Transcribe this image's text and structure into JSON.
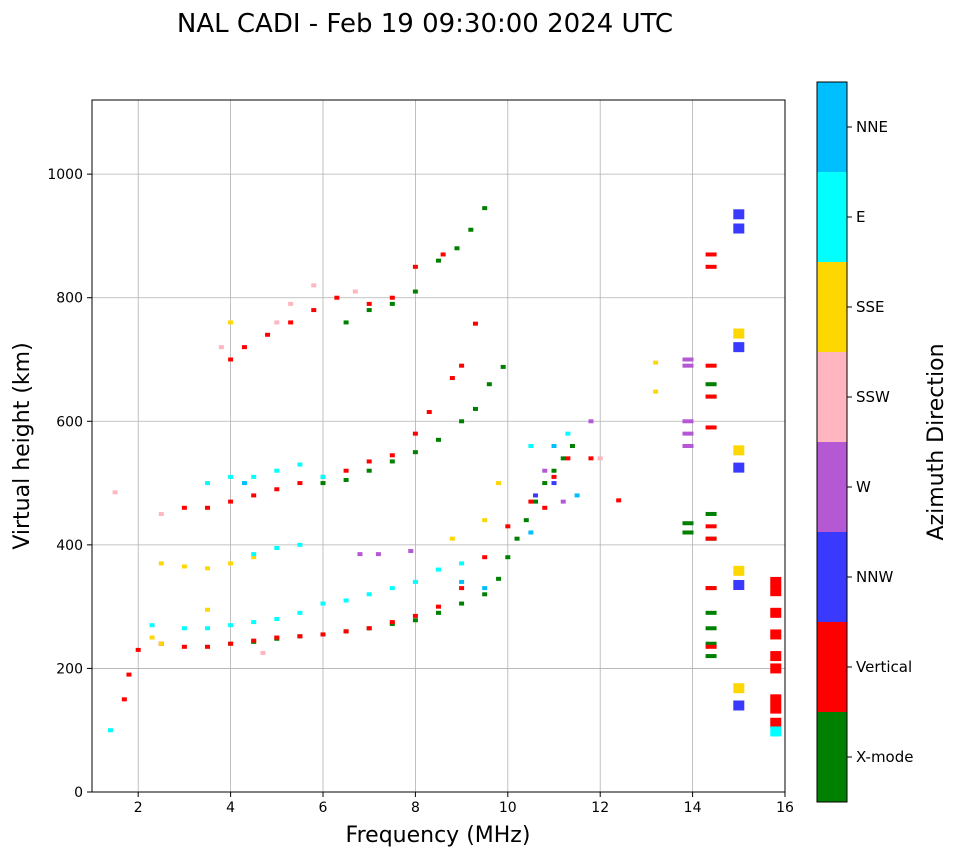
{
  "chart_data": {
    "type": "scatter",
    "title": "NAL CADI - Feb 19 09:30:00 2024 UTC",
    "xlabel": "Frequency (MHz)",
    "ylabel": "Virtual height (km)",
    "xlim": [
      1,
      16
    ],
    "ylim": [
      0,
      1120
    ],
    "xticks": [
      2,
      4,
      6,
      8,
      10,
      12,
      14,
      16
    ],
    "yticks": [
      0,
      200,
      400,
      600,
      800,
      1000
    ],
    "grid": true,
    "colorbar": {
      "label": "Azimuth Direction",
      "position": "right",
      "categories": [
        {
          "name": "X-mode",
          "color": "#008000"
        },
        {
          "name": "Vertical",
          "color": "#ff0000"
        },
        {
          "name": "NNW",
          "color": "#3a3aff"
        },
        {
          "name": "W",
          "color": "#b459d3"
        },
        {
          "name": "SSW",
          "color": "#ffb6c1"
        },
        {
          "name": "SSE",
          "color": "#ffd700"
        },
        {
          "name": "E",
          "color": "#00ffff"
        },
        {
          "name": "NNE",
          "color": "#00bfff"
        }
      ]
    },
    "series": [
      {
        "name": "X-mode",
        "points": [
          [
            4,
            240
          ],
          [
            4.5,
            243
          ],
          [
            5,
            248
          ],
          [
            5.5,
            252
          ],
          [
            6,
            255
          ],
          [
            6.5,
            260
          ],
          [
            7,
            265
          ],
          [
            7.5,
            272
          ],
          [
            8,
            278
          ],
          [
            8.5,
            290
          ],
          [
            9,
            305
          ],
          [
            9.5,
            320
          ],
          [
            9.8,
            345
          ],
          [
            10,
            380
          ],
          [
            10.2,
            410
          ],
          [
            10.4,
            440
          ],
          [
            10.6,
            470
          ],
          [
            10.8,
            500
          ],
          [
            11,
            520
          ],
          [
            11.2,
            540
          ],
          [
            11.4,
            560
          ],
          [
            6,
            500
          ],
          [
            6.5,
            505
          ],
          [
            7,
            520
          ],
          [
            7.5,
            535
          ],
          [
            8,
            550
          ],
          [
            8.5,
            570
          ],
          [
            9,
            600
          ],
          [
            9.3,
            620
          ],
          [
            9.6,
            660
          ],
          [
            9.9,
            688
          ],
          [
            6.5,
            760
          ],
          [
            7,
            780
          ],
          [
            7.5,
            790
          ],
          [
            8,
            810
          ],
          [
            8.5,
            860
          ],
          [
            8.9,
            880
          ],
          [
            9.2,
            910
          ],
          [
            9.5,
            945
          ],
          [
            14.4,
            220
          ],
          [
            14.4,
            240
          ],
          [
            14.4,
            265
          ],
          [
            14.4,
            290
          ],
          [
            14.4,
            330
          ],
          [
            14.4,
            410
          ],
          [
            14.4,
            450
          ],
          [
            14.4,
            640
          ],
          [
            14.4,
            660
          ],
          [
            13.9,
            420
          ],
          [
            13.9,
            435
          ]
        ]
      },
      {
        "name": "Vertical",
        "points": [
          [
            1.7,
            150
          ],
          [
            1.8,
            190
          ],
          [
            2,
            230
          ],
          [
            2.5,
            240
          ],
          [
            3,
            235
          ],
          [
            3.5,
            235
          ],
          [
            4,
            240
          ],
          [
            4.5,
            245
          ],
          [
            5,
            250
          ],
          [
            5.5,
            252
          ],
          [
            6,
            255
          ],
          [
            6.5,
            260
          ],
          [
            7,
            265
          ],
          [
            7.5,
            275
          ],
          [
            8,
            285
          ],
          [
            8.5,
            300
          ],
          [
            9,
            330
          ],
          [
            9.5,
            380
          ],
          [
            10,
            430
          ],
          [
            3,
            460
          ],
          [
            3.5,
            460
          ],
          [
            4,
            470
          ],
          [
            4.5,
            480
          ],
          [
            5,
            490
          ],
          [
            5.5,
            500
          ],
          [
            6,
            510
          ],
          [
            6.5,
            520
          ],
          [
            7,
            535
          ],
          [
            7.5,
            545
          ],
          [
            8,
            580
          ],
          [
            8.3,
            615
          ],
          [
            8.8,
            670
          ],
          [
            9,
            690
          ],
          [
            9.3,
            758
          ],
          [
            4,
            700
          ],
          [
            4.3,
            720
          ],
          [
            4.8,
            740
          ],
          [
            5.3,
            760
          ],
          [
            5.8,
            780
          ],
          [
            6.3,
            800
          ],
          [
            7,
            790
          ],
          [
            7.5,
            800
          ],
          [
            8,
            850
          ],
          [
            8.6,
            870
          ],
          [
            10.5,
            470
          ],
          [
            10.8,
            460
          ],
          [
            11,
            510
          ],
          [
            11.3,
            540
          ],
          [
            11.8,
            540
          ],
          [
            12.4,
            472
          ],
          [
            14.4,
            870
          ],
          [
            14.4,
            850
          ],
          [
            14.4,
            690
          ],
          [
            14.4,
            640
          ],
          [
            14.4,
            590
          ],
          [
            14.4,
            430
          ],
          [
            14.4,
            410
          ],
          [
            14.4,
            330
          ],
          [
            14.4,
            235
          ],
          [
            15.8,
            340
          ],
          [
            15.8,
            325
          ],
          [
            15.8,
            290
          ],
          [
            15.8,
            255
          ],
          [
            15.8,
            220
          ],
          [
            15.8,
            200
          ],
          [
            15.8,
            150
          ],
          [
            15.8,
            135
          ],
          [
            15.8,
            112
          ]
        ]
      },
      {
        "name": "NNW",
        "points": [
          [
            15,
            935
          ],
          [
            15,
            912
          ],
          [
            15,
            720
          ],
          [
            15,
            525
          ],
          [
            15,
            335
          ],
          [
            15,
            140
          ],
          [
            10.6,
            480
          ],
          [
            11,
            500
          ]
        ]
      },
      {
        "name": "W",
        "points": [
          [
            13.9,
            700
          ],
          [
            13.9,
            690
          ],
          [
            13.9,
            600
          ],
          [
            13.9,
            580
          ],
          [
            13.9,
            560
          ],
          [
            10.8,
            520
          ],
          [
            11.2,
            470
          ],
          [
            11.8,
            600
          ],
          [
            6.8,
            385
          ],
          [
            7.2,
            385
          ],
          [
            7.9,
            390
          ]
        ]
      },
      {
        "name": "SSW",
        "points": [
          [
            5,
            760
          ],
          [
            5.3,
            790
          ],
          [
            5.8,
            820
          ],
          [
            6.7,
            810
          ],
          [
            3.8,
            720
          ],
          [
            1.5,
            485
          ],
          [
            2.5,
            450
          ],
          [
            4.7,
            225
          ],
          [
            12,
            540
          ]
        ]
      },
      {
        "name": "SSE",
        "points": [
          [
            2.5,
            370
          ],
          [
            3,
            365
          ],
          [
            3.5,
            362
          ],
          [
            4,
            370
          ],
          [
            4.5,
            380
          ],
          [
            15,
            742
          ],
          [
            15,
            553
          ],
          [
            15,
            358
          ],
          [
            15,
            168
          ],
          [
            13.2,
            695
          ],
          [
            13.2,
            648
          ],
          [
            9.5,
            440
          ],
          [
            9.8,
            500
          ],
          [
            8.8,
            410
          ],
          [
            3.5,
            295
          ],
          [
            4,
            760
          ],
          [
            2.5,
            240
          ],
          [
            2.3,
            250
          ]
        ]
      },
      {
        "name": "E",
        "points": [
          [
            2.3,
            270
          ],
          [
            3,
            265
          ],
          [
            3.5,
            265
          ],
          [
            4,
            270
          ],
          [
            4.5,
            275
          ],
          [
            5,
            280
          ],
          [
            5.5,
            290
          ],
          [
            6,
            305
          ],
          [
            6.5,
            310
          ],
          [
            7,
            320
          ],
          [
            7.5,
            330
          ],
          [
            8,
            340
          ],
          [
            8.5,
            360
          ],
          [
            9,
            370
          ],
          [
            3.5,
            500
          ],
          [
            4,
            510
          ],
          [
            4.5,
            510
          ],
          [
            5,
            520
          ],
          [
            5.5,
            530
          ],
          [
            6,
            510
          ],
          [
            5.5,
            400
          ],
          [
            5,
            395
          ],
          [
            4.5,
            385
          ],
          [
            10.5,
            560
          ],
          [
            15.8,
            98
          ],
          [
            1.4,
            100
          ],
          [
            11.3,
            580
          ]
        ]
      },
      {
        "name": "NNE",
        "points": [
          [
            9,
            340
          ],
          [
            9.5,
            330
          ],
          [
            10.5,
            420
          ],
          [
            11,
            560
          ],
          [
            4.3,
            500
          ],
          [
            11.5,
            480
          ]
        ]
      }
    ]
  }
}
